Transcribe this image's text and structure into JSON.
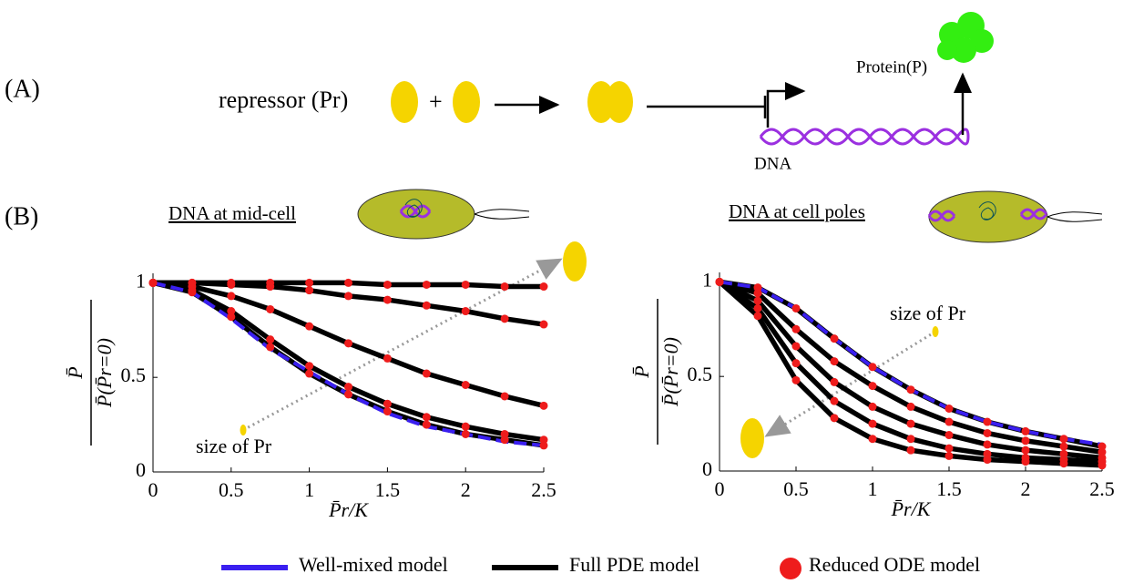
{
  "panel_labels": [
    "(A)",
    "(B)"
  ],
  "diagram": {
    "repressor": "repressor (Pr)",
    "plus": "+",
    "protein": "Protein(P)",
    "dna": "DNA",
    "mid_cell": "DNA at mid-cell",
    "cell_poles": "DNA at cell poles"
  },
  "legend": [
    {
      "name": "Well-mixed model",
      "color": "#3a1ff0",
      "style": "line"
    },
    {
      "name": "Full PDE model",
      "color": "#000000",
      "style": "line"
    },
    {
      "name": "Reduced ODE model",
      "color": "#ee1c1c",
      "style": "dot"
    }
  ],
  "chart_data": [
    {
      "type": "line",
      "xlabel": "P̄r/K",
      "ylabel_numerator": "P̄",
      "ylabel_denominator": "P̄(P̄r=0)",
      "annotation": "size of Pr",
      "x": [
        0,
        0.25,
        0.5,
        0.75,
        1,
        1.25,
        1.5,
        1.75,
        2,
        2.25,
        2.5
      ],
      "xlim": [
        0,
        2.5
      ],
      "ylim": [
        0,
        1.05
      ],
      "xticks": [
        0,
        0.5,
        1,
        1.5,
        2,
        2.5
      ],
      "yticks": [
        0,
        0.5,
        1
      ],
      "series": [
        {
          "color": "#000000",
          "marker_color": "#ee1c1c",
          "values": [
            1,
            1,
            1,
            1,
            1,
            1,
            0.99,
            0.99,
            0.99,
            0.98,
            0.98
          ]
        },
        {
          "color": "#000000",
          "marker_color": "#ee1c1c",
          "values": [
            1,
            1,
            0.99,
            0.98,
            0.96,
            0.93,
            0.91,
            0.88,
            0.85,
            0.81,
            0.78
          ]
        },
        {
          "color": "#000000",
          "marker_color": "#ee1c1c",
          "values": [
            1,
            0.98,
            0.93,
            0.86,
            0.77,
            0.68,
            0.6,
            0.52,
            0.46,
            0.4,
            0.35
          ]
        },
        {
          "color": "#000000",
          "marker_color": "#ee1c1c",
          "values": [
            1,
            0.96,
            0.85,
            0.7,
            0.56,
            0.45,
            0.36,
            0.29,
            0.24,
            0.2,
            0.17
          ]
        },
        {
          "color": "#000000",
          "marker_color": "#ee1c1c",
          "values": [
            1,
            0.95,
            0.82,
            0.66,
            0.52,
            0.41,
            0.32,
            0.25,
            0.2,
            0.17,
            0.14
          ]
        },
        {
          "color": "#3a1ff0",
          "values": [
            1,
            0.95,
            0.81,
            0.65,
            0.53,
            0.41,
            0.31,
            0.24,
            0.2,
            0.16,
            0.14
          ]
        }
      ]
    },
    {
      "type": "line",
      "xlabel": "P̄r/K",
      "ylabel_numerator": "P̄",
      "ylabel_denominator": "P̄(P̄r=0)",
      "annotation": "size of Pr",
      "x": [
        0,
        0.25,
        0.5,
        0.75,
        1,
        1.25,
        1.5,
        1.75,
        2,
        2.25,
        2.5
      ],
      "xlim": [
        0,
        2.5
      ],
      "ylim": [
        0,
        1.05
      ],
      "xticks": [
        0,
        0.5,
        1,
        1.5,
        2,
        2.5
      ],
      "yticks": [
        0,
        0.5,
        1
      ],
      "series": [
        {
          "color": "#000000",
          "marker_color": "#ee1c1c",
          "values": [
            1,
            0.97,
            0.86,
            0.7,
            0.55,
            0.43,
            0.33,
            0.26,
            0.21,
            0.17,
            0.13
          ]
        },
        {
          "color": "#000000",
          "marker_color": "#ee1c1c",
          "values": [
            1,
            0.94,
            0.75,
            0.58,
            0.45,
            0.34,
            0.26,
            0.2,
            0.16,
            0.13,
            0.1
          ]
        },
        {
          "color": "#000000",
          "marker_color": "#ee1c1c",
          "values": [
            1,
            0.9,
            0.66,
            0.47,
            0.34,
            0.25,
            0.19,
            0.14,
            0.11,
            0.09,
            0.07
          ]
        },
        {
          "color": "#000000",
          "marker_color": "#ee1c1c",
          "values": [
            1,
            0.86,
            0.57,
            0.37,
            0.25,
            0.17,
            0.12,
            0.09,
            0.07,
            0.06,
            0.05
          ]
        },
        {
          "color": "#000000",
          "marker_color": "#ee1c1c",
          "values": [
            1,
            0.82,
            0.48,
            0.28,
            0.17,
            0.11,
            0.08,
            0.06,
            0.05,
            0.04,
            0.03
          ]
        },
        {
          "color": "#3a1ff0",
          "values": [
            1,
            0.97,
            0.86,
            0.7,
            0.55,
            0.43,
            0.33,
            0.26,
            0.21,
            0.17,
            0.14
          ]
        }
      ]
    }
  ]
}
